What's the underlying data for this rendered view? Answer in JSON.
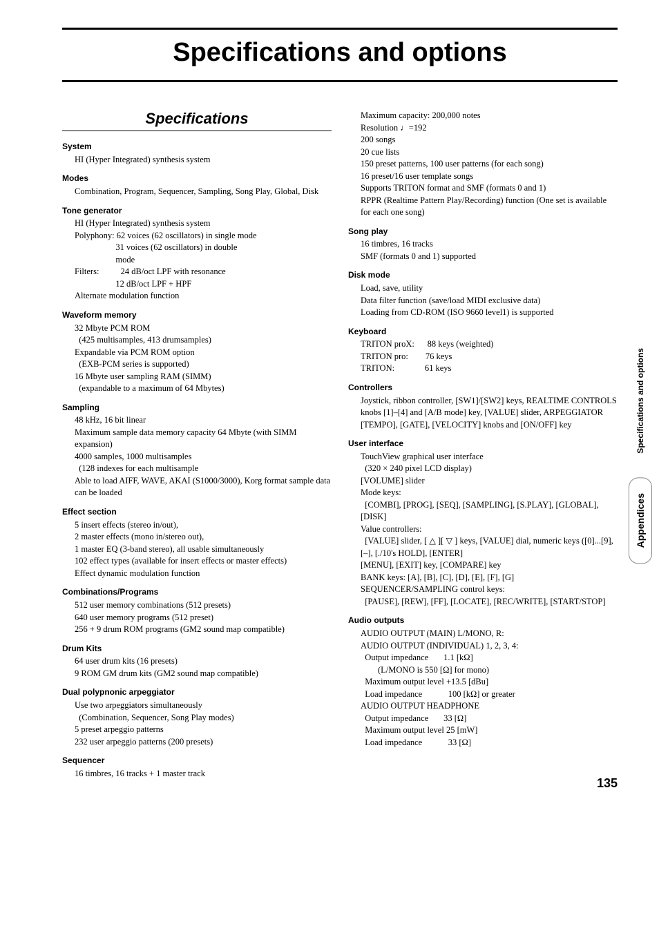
{
  "page_title": "Specifications and options",
  "section_heading": "Specifications",
  "page_number": "135",
  "side_tab_1": "Specifications and options",
  "side_tab_2": "Appendices",
  "left_column": [
    {
      "label": "System",
      "body": "HI (Hyper Integrated) synthesis system"
    },
    {
      "label": "Modes",
      "body": "Combination, Program, Sequencer, Sampling, Song Play, Global, Disk"
    },
    {
      "label": "Tone generator",
      "body": "HI (Hyper Integrated) synthesis system\nPolyphony: 62 voices (62 oscillators) in single mode\n                   31 voices (62 oscillators) in double\n                   mode\nFilters:          24 dB/oct LPF with resonance\n                   12 dB/oct LPF + HPF\nAlternate modulation function"
    },
    {
      "label": "Waveform memory",
      "body": "32 Mbyte PCM ROM\n  (425 multisamples, 413 drumsamples)\nExpandable via PCM ROM option\n  (EXB-PCM series is supported)\n16 Mbyte user sampling RAM (SIMM)\n  (expandable to a maximum of 64 Mbytes)"
    },
    {
      "label": "Sampling",
      "body": "48 kHz, 16 bit linear\nMaximum sample data memory capacity 64 Mbyte (with SIMM expansion)\n4000 samples, 1000 multisamples\n  (128 indexes for each multisample\nAble to load AIFF, WAVE, AKAI (S1000/3000), Korg format sample data can be loaded"
    },
    {
      "label": "Effect section",
      "body": "5 insert effects (stereo in/out),\n2 master effects (mono in/stereo out),\n1 master EQ (3-band stereo), all usable simultaneously\n102 effect types (available for insert effects or master effects)\nEffect dynamic modulation function"
    },
    {
      "label": "Combinations/Programs",
      "body": "512 user memory combinations (512 presets)\n640 user memory programs (512 preset)\n256 + 9 drum ROM programs (GM2 sound map compatible)"
    },
    {
      "label": "Drum Kits",
      "body": "64 user drum kits (16 presets)\n9 ROM GM drum kits (GM2 sound map compatible)"
    },
    {
      "label": "Dual polypnonic arpeggiator",
      "body": "Use two arpeggiators simultaneously\n  (Combination, Sequencer, Song Play modes)\n5 preset arpeggio patterns\n232 user arpeggio patterns (200 presets)"
    },
    {
      "label": "Sequencer",
      "body": "16 timbres, 16 tracks + 1 master track"
    }
  ],
  "right_column": [
    {
      "label": "",
      "body": "Maximum capacity: 200,000 notes\nResolution ♩=192\n200 songs\n20 cue lists\n150 preset patterns, 100 user patterns (for each song)\n16 preset/16 user template songs\nSupports TRITON format and SMF (formats 0 and 1)\nRPPR (Realtime Pattern Play/Recording) function (One set is available for each one song)"
    },
    {
      "label": "Song play",
      "body": "16 timbres, 16 tracks\nSMF (formats 0 and 1) supported"
    },
    {
      "label": "Disk mode",
      "body": "Load, save, utility\nData filter function (save/load MIDI exclusive data)\nLoading from CD-ROM (ISO 9660 level1) is supported"
    },
    {
      "label": "Keyboard",
      "body": "TRITON proX:      88 keys (weighted)\nTRITON pro:        76 keys\nTRITON:              61 keys"
    },
    {
      "label": "Controllers",
      "body": "Joystick, ribbon controller, [SW1]/[SW2] keys, REALTIME CONTROLS knobs [1]–[4] and [A/B mode] key, [VALUE] slider, ARPEGGIATOR [TEMPO], [GATE], [VELOCITY] knobs and [ON/OFF] key"
    },
    {
      "label": "User interface",
      "body": "TouchView graphical user interface\n  (320 × 240 pixel LCD display)\n[VOLUME] slider\nMode keys:\n  [COMBI], [PROG], [SEQ], [SAMPLING], [S.PLAY], [GLOBAL], [DISK]\nValue controllers:\n  [VALUE] slider, [ △ ][ ▽ ] keys, [VALUE] dial, numeric keys ([0]...[9], [–], [./10's HOLD], [ENTER]\n[MENU], [EXIT] key, [COMPARE] key\nBANK keys: [A], [B], [C], [D], [E], [F], [G]\nSEQUENCER/SAMPLING control keys:\n  [PAUSE], [REW], [FF], [LOCATE], [REC/WRITE], [START/STOP]"
    },
    {
      "label": "Audio outputs",
      "body": "AUDIO OUTPUT (MAIN) L/MONO, R:\nAUDIO OUTPUT (INDIVIDUAL) 1, 2, 3, 4:\n  Output impedance       1.1 [kΩ]\n        (L/MONO is 550 [Ω] for mono)\n  Maximum output level +13.5 [dBu]\n  Load impedance            100 [kΩ] or greater\nAUDIO OUTPUT HEADPHONE\n  Output impedance       33 [Ω]\n  Maximum output level 25 [mW]\n  Load impedance            33 [Ω]"
    }
  ]
}
